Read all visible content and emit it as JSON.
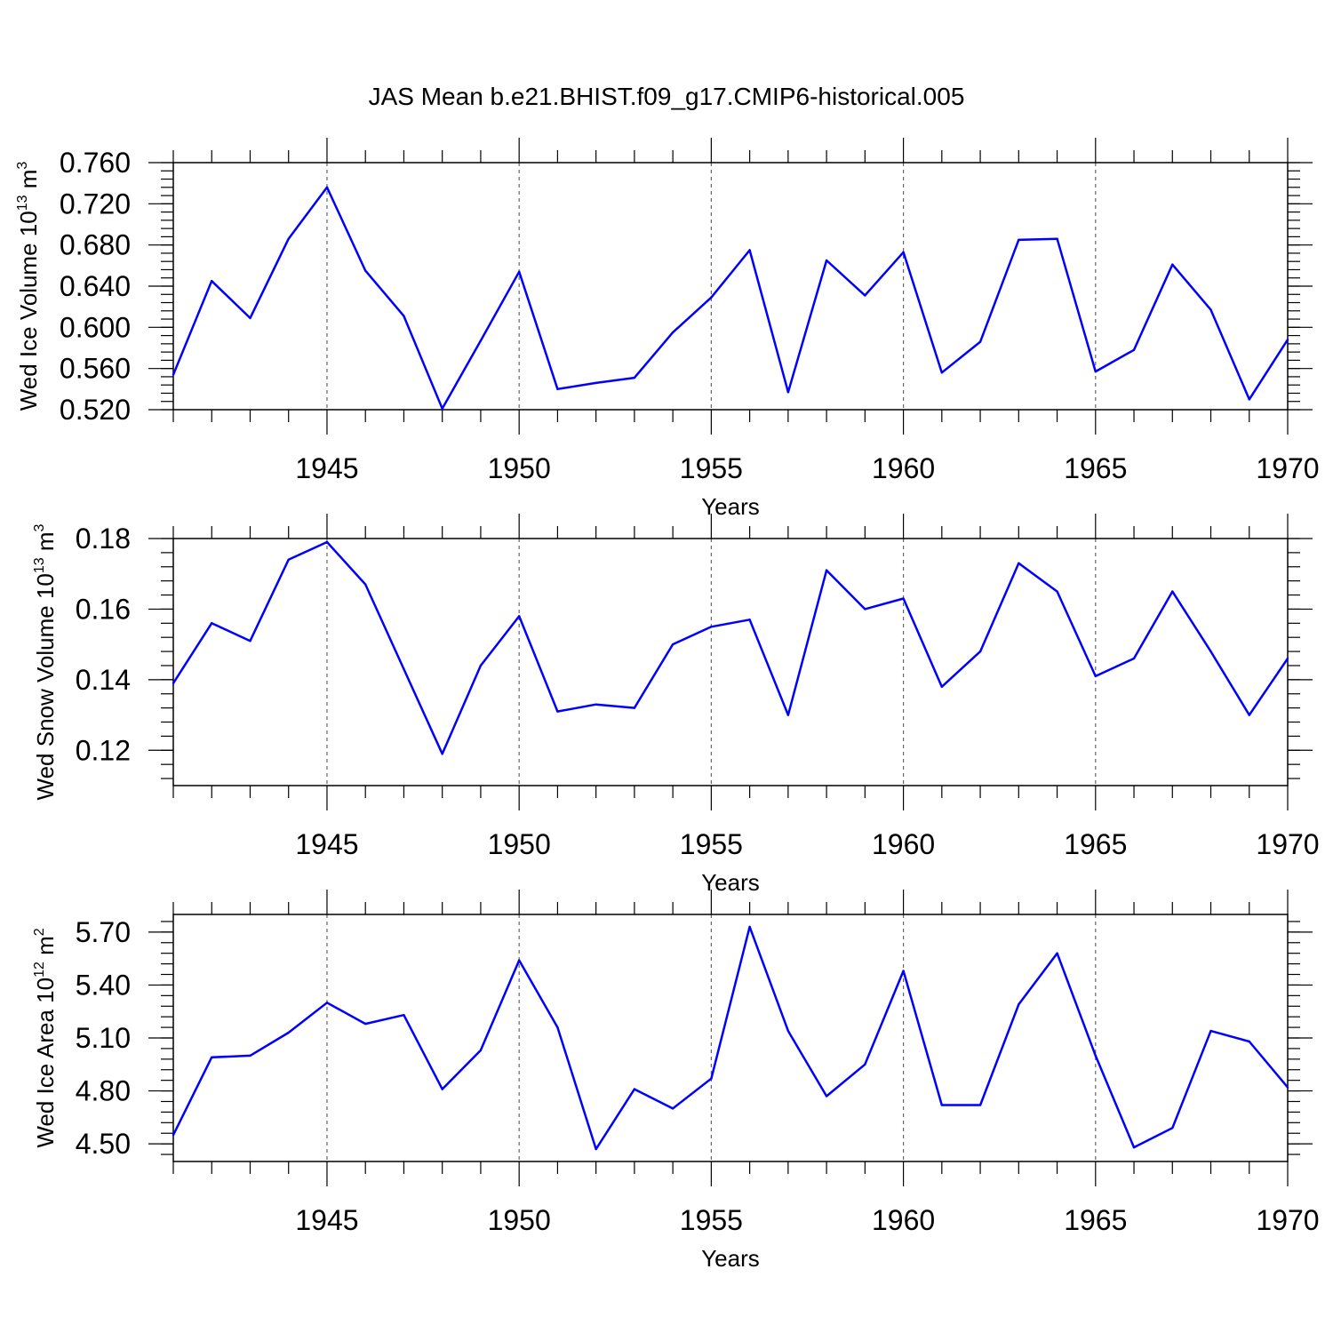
{
  "title": "JAS Mean b.e21.BHIST.f09_g17.CMIP6-historical.005",
  "series_color": "#0000ff",
  "chart_data": [
    {
      "type": "line",
      "ylabel": {
        "prefix": "Wed Ice Volume 10",
        "exp": "13",
        "unit": " m",
        "unit_exp": "3"
      },
      "xlabel": "Years",
      "xlim": [
        1941,
        1970
      ],
      "ylim": [
        0.52,
        0.76
      ],
      "yticks": [
        0.52,
        0.56,
        0.6,
        0.64,
        0.68,
        0.72,
        0.76
      ],
      "ytick_labels": [
        "0.520",
        "0.560",
        "0.600",
        "0.640",
        "0.680",
        "0.720",
        "0.760"
      ],
      "xticks": [
        1945,
        1950,
        1955,
        1960,
        1965,
        1970
      ],
      "xtick_labels": [
        "1945",
        "1950",
        "1955",
        "1960",
        "1965",
        "1970"
      ],
      "x": [
        1941,
        1942,
        1943,
        1944,
        1945,
        1946,
        1947,
        1948,
        1949,
        1950,
        1951,
        1952,
        1953,
        1954,
        1955,
        1956,
        1957,
        1958,
        1959,
        1960,
        1961,
        1962,
        1963,
        1964,
        1965,
        1966,
        1967,
        1968,
        1969,
        1970
      ],
      "values": [
        0.554,
        0.645,
        0.609,
        0.686,
        0.736,
        0.655,
        0.611,
        0.521,
        0.587,
        0.654,
        0.54,
        0.546,
        0.551,
        0.595,
        0.629,
        0.675,
        0.537,
        0.665,
        0.631,
        0.673,
        0.556,
        0.586,
        0.685,
        0.686,
        0.557,
        0.578,
        0.661,
        0.617,
        0.53,
        0.588
      ]
    },
    {
      "type": "line",
      "ylabel": {
        "prefix": "Wed Snow Volume 10",
        "exp": "13",
        "unit": " m",
        "unit_exp": "3"
      },
      "xlabel": "Years",
      "xlim": [
        1941,
        1970
      ],
      "ylim": [
        0.11,
        0.18
      ],
      "yticks": [
        0.12,
        0.14,
        0.16,
        0.18
      ],
      "ytick_labels": [
        "0.12",
        "0.14",
        "0.16",
        "0.18"
      ],
      "xticks": [
        1945,
        1950,
        1955,
        1960,
        1965,
        1970
      ],
      "xtick_labels": [
        "1945",
        "1950",
        "1955",
        "1960",
        "1965",
        "1970"
      ],
      "x": [
        1941,
        1942,
        1943,
        1944,
        1945,
        1946,
        1947,
        1948,
        1949,
        1950,
        1951,
        1952,
        1953,
        1954,
        1955,
        1956,
        1957,
        1958,
        1959,
        1960,
        1961,
        1962,
        1963,
        1964,
        1965,
        1966,
        1967,
        1968,
        1969,
        1970
      ],
      "values": [
        0.139,
        0.156,
        0.151,
        0.174,
        0.179,
        0.167,
        0.143,
        0.119,
        0.144,
        0.158,
        0.131,
        0.133,
        0.132,
        0.15,
        0.155,
        0.157,
        0.13,
        0.171,
        0.16,
        0.163,
        0.138,
        0.148,
        0.173,
        0.165,
        0.141,
        0.146,
        0.165,
        0.148,
        0.13,
        0.146
      ]
    },
    {
      "type": "line",
      "ylabel": {
        "prefix": "Wed Ice Area 10",
        "exp": "12",
        "unit": " m",
        "unit_exp": "2"
      },
      "xlabel": "Years",
      "xlim": [
        1941,
        1970
      ],
      "ylim": [
        4.4,
        5.8
      ],
      "yticks": [
        4.5,
        4.8,
        5.1,
        5.4,
        5.7
      ],
      "ytick_labels": [
        "4.50",
        "4.80",
        "5.10",
        "5.40",
        "5.70"
      ],
      "xticks": [
        1945,
        1950,
        1955,
        1960,
        1965,
        1970
      ],
      "xtick_labels": [
        "1945",
        "1950",
        "1955",
        "1960",
        "1965",
        "1970"
      ],
      "x": [
        1941,
        1942,
        1943,
        1944,
        1945,
        1946,
        1947,
        1948,
        1949,
        1950,
        1951,
        1952,
        1953,
        1954,
        1955,
        1956,
        1957,
        1958,
        1959,
        1960,
        1961,
        1962,
        1963,
        1964,
        1965,
        1966,
        1967,
        1968,
        1969,
        1970
      ],
      "values": [
        4.55,
        4.99,
        5.0,
        5.13,
        5.3,
        5.18,
        5.23,
        4.81,
        5.03,
        5.54,
        5.16,
        4.47,
        4.81,
        4.7,
        4.87,
        5.73,
        5.14,
        4.77,
        4.95,
        5.48,
        4.72,
        4.72,
        5.29,
        5.58,
        5.0,
        4.48,
        4.59,
        5.14,
        5.08,
        4.82
      ]
    }
  ]
}
